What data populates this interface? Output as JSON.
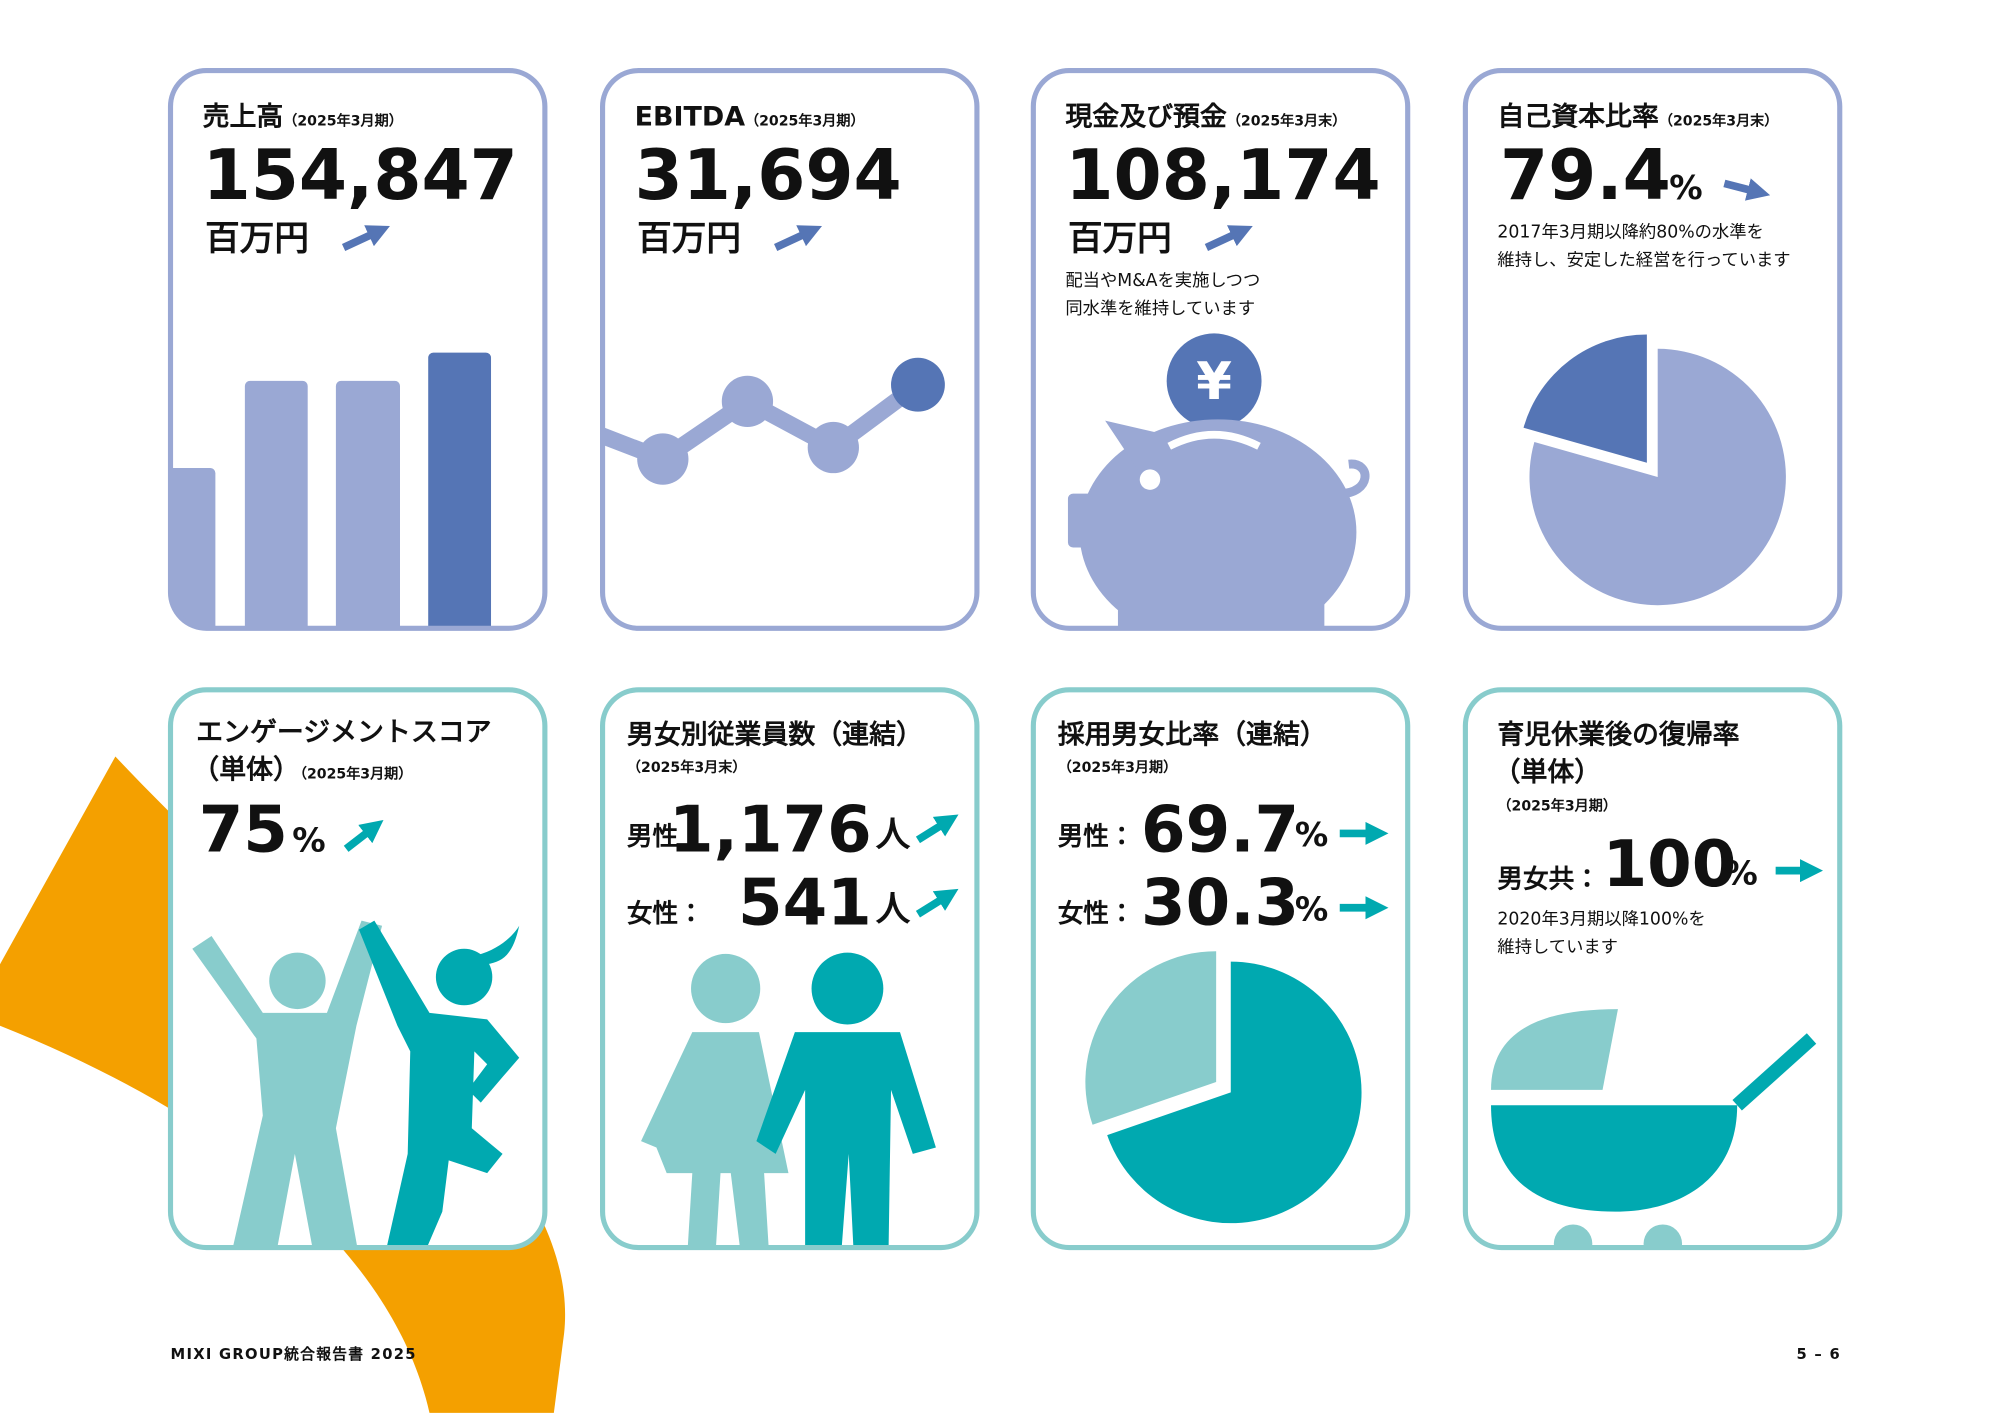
{
  "cards": [
    {
      "title": "売上高",
      "period": "（2025年3月期）",
      "value": "154,847",
      "unit": "百万円"
    },
    {
      "title": "EBITDA",
      "period": "（2025年3月期）",
      "value": "31,694",
      "unit": "百万円"
    },
    {
      "title": "現金及び預金",
      "period": "（2025年3月末）",
      "value": "108,174",
      "unit": "百万円",
      "symbol": "¥",
      "note": [
        "配当やM&Aを実施しつつ",
        "同水準を維持しています"
      ]
    },
    {
      "title": "自己資本比率",
      "period": "（2025年3月末）",
      "value": 79.4,
      "unit": "%",
      "note": [
        "2017年3月期以降約80%の水準を",
        "維持し、安定した経営を行っています"
      ]
    },
    {
      "title": [
        "エンゲージメントスコア",
        "（単体）"
      ],
      "period": "（2025年3月期）",
      "value": 75,
      "unit": "%"
    },
    {
      "title": "男女別従業員数（連結）",
      "period": "（2025年3月末）",
      "rows": [
        {
          "label": "男性：",
          "value": "1,176",
          "unit": "人"
        },
        {
          "label": "女性：",
          "value": "541",
          "unit": "人"
        }
      ]
    },
    {
      "title": "採用男女比率（連結）",
      "period": "（2025年3月期）",
      "rows": [
        {
          "label": "男性：",
          "value": 69.7,
          "unit": "%"
        },
        {
          "label": "女性：",
          "value": 30.3,
          "unit": "%"
        }
      ]
    },
    {
      "title": [
        "育児休業後の復帰率",
        "（単体）"
      ],
      "period": "（2025年3月期）",
      "rows": [
        {
          "label": "男女共：",
          "value": 100,
          "unit": "%"
        }
      ],
      "note": [
        "2020年3月期以降100%を",
        "維持しています"
      ]
    }
  ],
  "footer": {
    "left": "MIXI GROUP統合報告書 2025",
    "right": "5 – 6"
  }
}
